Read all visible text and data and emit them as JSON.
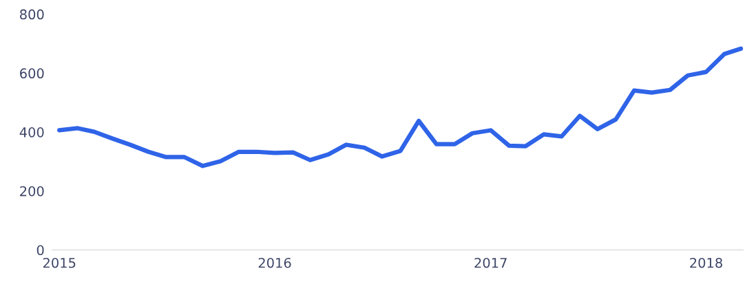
{
  "chart_data": {
    "type": "line",
    "x": [
      "2015-01",
      "2015-02",
      "2015-03",
      "2015-04",
      "2015-05",
      "2015-06",
      "2015-07",
      "2015-08",
      "2015-09",
      "2015-10",
      "2015-11",
      "2015-12",
      "2016-01",
      "2016-02",
      "2016-03",
      "2016-04",
      "2016-05",
      "2016-06",
      "2016-07",
      "2016-08",
      "2016-09",
      "2016-10",
      "2016-11",
      "2016-12",
      "2017-01",
      "2017-02",
      "2017-03",
      "2017-04",
      "2017-05",
      "2017-06",
      "2017-07",
      "2017-08",
      "2017-09",
      "2017-10",
      "2017-11",
      "2017-12",
      "2018-01",
      "2018-02",
      "2018-03"
    ],
    "series": [
      {
        "color": "#2f64e8",
        "values": [
          406,
          413,
          401,
          378,
          357,
          333,
          315,
          315,
          285,
          301,
          333,
          333,
          329,
          331,
          305,
          324,
          357,
          347,
          317,
          336,
          438,
          359,
          359,
          396,
          406,
          354,
          352,
          392,
          385,
          455,
          410,
          443,
          541,
          534,
          543,
          592,
          604,
          665,
          683
        ]
      }
    ],
    "xlim": [
      "2014-12-20",
      "2018-03-05"
    ],
    "xticks": [
      {
        "value": "2015-01-01",
        "label": "2015"
      },
      {
        "value": "2016-01-01",
        "label": "2016"
      },
      {
        "value": "2017-01-01",
        "label": "2017"
      },
      {
        "value": "2018-01-01",
        "label": "2018"
      }
    ],
    "ylim": [
      0,
      800
    ],
    "yticks": [
      0,
      200,
      400,
      600,
      800
    ],
    "marker": "none",
    "line_style": "solid"
  }
}
